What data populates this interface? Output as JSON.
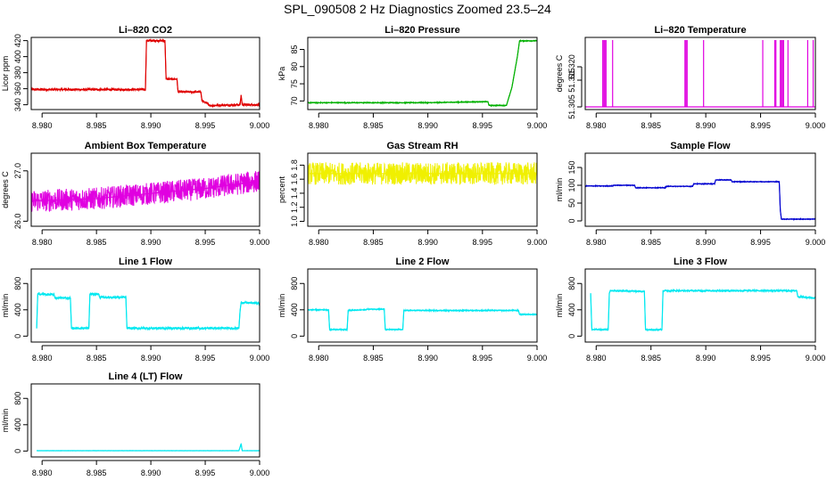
{
  "title": "SPL_090508  2 Hz Diagnostics Zoomed 23.5–24",
  "chart_data": [
    {
      "type": "line",
      "title": "Li–820 CO2",
      "ylabel": "Licor ppm",
      "color": "#e00000",
      "xlim": [
        8.979,
        9.0
      ],
      "ylim": [
        334,
        424
      ],
      "xticks": [
        8.98,
        8.985,
        8.99,
        8.995,
        9.0
      ],
      "xticklabels": [
        "8.980",
        "8.985",
        "8.990",
        "8.995",
        "9.000"
      ],
      "yticks": [
        340,
        360,
        380,
        400,
        420
      ],
      "yticklabels": [
        "340",
        "360",
        "380",
        "400",
        "420"
      ],
      "x": [
        8.979,
        8.9895,
        8.9896,
        8.9913,
        8.9914,
        8.9924,
        8.9925,
        8.9946,
        8.9947,
        8.9955,
        8.9982,
        8.9983,
        8.9984,
        9.0
      ],
      "y": [
        359,
        359,
        420,
        420,
        372,
        372,
        356,
        356,
        345,
        339,
        340,
        352,
        340,
        340
      ],
      "noise": 1.5
    },
    {
      "type": "line",
      "title": "Li–820 Pressure",
      "ylabel": "kPa",
      "color": "#00b000",
      "xlim": [
        8.979,
        9.0
      ],
      "ylim": [
        67.5,
        88.5
      ],
      "xticks": [
        8.98,
        8.985,
        8.99,
        8.995,
        9.0
      ],
      "xticklabels": [
        "8.980",
        "8.985",
        "8.990",
        "8.995",
        "9.000"
      ],
      "yticks": [
        70,
        75,
        80,
        85
      ],
      "yticklabels": [
        "70",
        "75",
        "80",
        "85"
      ],
      "x": [
        8.979,
        8.99,
        8.9955,
        8.9956,
        8.9972,
        8.9977,
        8.9982,
        8.9984,
        9.0
      ],
      "y": [
        69.5,
        69.5,
        69.8,
        68.7,
        68.7,
        74,
        83,
        87.5,
        87.5
      ],
      "noise": 0.15
    },
    {
      "type": "spike",
      "title": "Li–820 Temperature",
      "ylabel": "degrees C",
      "color": "#e000e0",
      "xlim": [
        8.979,
        9.0
      ],
      "ylim": [
        51.304,
        51.331
      ],
      "xticks": [
        8.98,
        8.985,
        8.99,
        8.995,
        9.0
      ],
      "xticklabels": [
        "8.980",
        "8.985",
        "8.990",
        "8.995",
        "9.000"
      ],
      "yticks": [
        51.305,
        51.315,
        51.32
      ],
      "yticklabels": [
        "51.305",
        "51.315",
        "51.320"
      ],
      "baseline": 51.305,
      "top": 51.33,
      "x": [
        8.9806,
        8.9807,
        8.9808,
        8.9809,
        8.9815,
        8.9881,
        8.9882,
        8.9883,
        8.9898,
        8.9952,
        8.9963,
        8.9964,
        8.9968,
        8.9969,
        8.997,
        8.9971,
        8.9975,
        8.9993,
        8.9998
      ]
    },
    {
      "type": "line",
      "title": "Ambient Box Temperature",
      "ylabel": "degrees C",
      "color": "#e000e0",
      "xlim": [
        8.979,
        9.0
      ],
      "ylim": [
        25.9,
        27.35
      ],
      "xticks": [
        8.98,
        8.985,
        8.99,
        8.995,
        9.0
      ],
      "xticklabels": [
        "8.980",
        "8.985",
        "8.990",
        "8.995",
        "9.000"
      ],
      "yticks": [
        26.0,
        27.0
      ],
      "yticklabels": [
        "26.0",
        "27.0"
      ],
      "x": [
        8.979,
        8.985,
        8.99,
        8.995,
        9.0
      ],
      "y": [
        26.4,
        26.45,
        26.55,
        26.65,
        26.8
      ],
      "noise": 0.22
    },
    {
      "type": "line",
      "title": "Gas Stream RH",
      "ylabel": "percent",
      "color": "#f0f000",
      "xlim": [
        8.979,
        9.0
      ],
      "ylim": [
        0.93,
        1.97
      ],
      "xticks": [
        8.98,
        8.985,
        8.99,
        8.995,
        9.0
      ],
      "xticklabels": [
        "8.980",
        "8.985",
        "8.990",
        "8.995",
        "9.000"
      ],
      "yticks": [
        1.0,
        1.2,
        1.4,
        1.6,
        1.8
      ],
      "yticklabels": [
        "1.0",
        "1.2",
        "1.4",
        "1.6",
        "1.8"
      ],
      "x": [
        8.979,
        9.0
      ],
      "y": [
        1.68,
        1.68
      ],
      "noise": 0.16
    },
    {
      "type": "line",
      "title": "Sample Flow",
      "ylabel": "ml/min",
      "color": "#0000d0",
      "xlim": [
        8.979,
        9.0
      ],
      "ylim": [
        -15,
        190
      ],
      "xticks": [
        8.98,
        8.985,
        8.99,
        8.995,
        9.0
      ],
      "xticklabels": [
        "8.980",
        "8.985",
        "8.990",
        "8.995",
        "9.000"
      ],
      "yticks": [
        0,
        50,
        100,
        150
      ],
      "yticklabels": [
        "0",
        "50",
        "100",
        "150"
      ],
      "x": [
        8.979,
        8.9815,
        8.9816,
        8.9835,
        8.9836,
        8.9863,
        8.9864,
        8.9888,
        8.9889,
        8.9908,
        8.9909,
        8.9923,
        8.9924,
        8.9967,
        8.9968,
        8.9969,
        8.997,
        9.0
      ],
      "y": [
        98,
        98,
        100,
        100,
        93,
        93,
        97,
        97,
        104,
        104,
        115,
        115,
        110,
        110,
        30,
        5,
        5,
        5
      ],
      "noise": 1.2
    },
    {
      "type": "line",
      "title": "Line 1 Flow",
      "ylabel": "ml/min",
      "color": "#00e8f0",
      "xlim": [
        8.979,
        9.0
      ],
      "ylim": [
        -90,
        1020
      ],
      "xticks": [
        8.98,
        8.985,
        8.99,
        8.995,
        9.0
      ],
      "xticklabels": [
        "8.980",
        "8.985",
        "8.990",
        "8.995",
        "9.000"
      ],
      "yticks": [
        0,
        400,
        800
      ],
      "yticklabels": [
        "0",
        "400",
        "800"
      ],
      "x": [
        8.9795,
        8.9796,
        8.9811,
        8.9812,
        8.9826,
        8.9827,
        8.9843,
        8.9844,
        8.9852,
        8.9853,
        8.9877,
        8.9878,
        8.9981,
        8.9982,
        8.9983,
        9.0
      ],
      "y": [
        120,
        640,
        630,
        580,
        580,
        120,
        120,
        640,
        640,
        590,
        590,
        120,
        120,
        380,
        510,
        500
      ],
      "noise": 18
    },
    {
      "type": "line",
      "title": "Line 2 Flow",
      "ylabel": "ml/min",
      "color": "#00e8f0",
      "xlim": [
        8.979,
        9.0
      ],
      "ylim": [
        -90,
        1020
      ],
      "xticks": [
        8.98,
        8.985,
        8.99,
        8.995,
        9.0
      ],
      "xticklabels": [
        "8.980",
        "8.985",
        "8.990",
        "8.995",
        "9.000"
      ],
      "yticks": [
        0,
        400,
        800
      ],
      "yticklabels": [
        "0",
        "400",
        "800"
      ],
      "x": [
        8.979,
        8.9809,
        8.981,
        8.9826,
        8.9827,
        8.9843,
        8.9844,
        8.986,
        8.9861,
        8.9877,
        8.9878,
        8.9983,
        8.9984,
        9.0
      ],
      "y": [
        400,
        400,
        100,
        100,
        390,
        400,
        410,
        410,
        100,
        100,
        390,
        390,
        330,
        330
      ],
      "noise": 9
    },
    {
      "type": "line",
      "title": "Line 3 Flow",
      "ylabel": "ml/min",
      "color": "#00e8f0",
      "xlim": [
        8.979,
        9.0
      ],
      "ylim": [
        -90,
        1020
      ],
      "xticks": [
        8.98,
        8.985,
        8.99,
        8.995,
        9.0
      ],
      "xticklabels": [
        "8.980",
        "8.985",
        "8.990",
        "8.995",
        "9.000"
      ],
      "yticks": [
        0,
        400,
        800
      ],
      "yticklabels": [
        "0",
        "400",
        "800"
      ],
      "x": [
        8.9795,
        8.9796,
        8.9797,
        8.9811,
        8.9812,
        8.9813,
        8.9844,
        8.9845,
        8.986,
        8.9861,
        8.9983,
        8.9984,
        9.0
      ],
      "y": [
        650,
        100,
        100,
        100,
        650,
        690,
        680,
        100,
        100,
        690,
        690,
        600,
        580
      ],
      "noise": 14
    },
    {
      "type": "line",
      "title": "Line 4 (LT) Flow",
      "ylabel": "ml/min",
      "color": "#00e8f0",
      "xlim": [
        8.979,
        9.0
      ],
      "ylim": [
        -90,
        1020
      ],
      "xticks": [
        8.98,
        8.985,
        8.99,
        8.995,
        9.0
      ],
      "xticklabels": [
        "8.980",
        "8.985",
        "8.990",
        "8.995",
        "9.000"
      ],
      "yticks": [
        0,
        400,
        800
      ],
      "yticklabels": [
        "0",
        "400",
        "800"
      ],
      "x": [
        8.9795,
        8.9981,
        8.9982,
        8.9983,
        8.9984,
        9.0
      ],
      "y": [
        5,
        5,
        60,
        110,
        5,
        5
      ],
      "noise": 2
    }
  ]
}
